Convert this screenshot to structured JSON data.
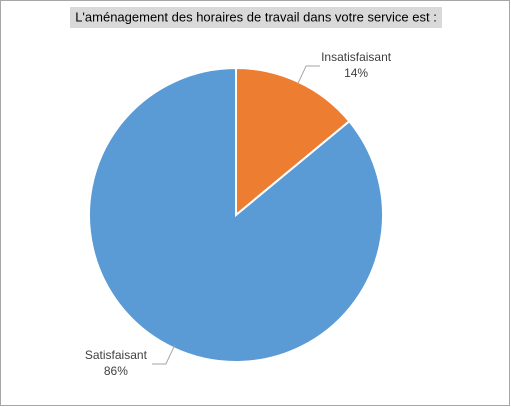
{
  "chart_data": {
    "type": "pie",
    "title": "L'aménagement des horaires de travail dans votre service est :",
    "categories": [
      "Insatisfaisant",
      "Satisfaisant"
    ],
    "values": [
      14,
      86
    ],
    "value_labels": [
      "14%",
      "86%"
    ],
    "colors": [
      "#ed7d31",
      "#5b9bd5"
    ]
  }
}
